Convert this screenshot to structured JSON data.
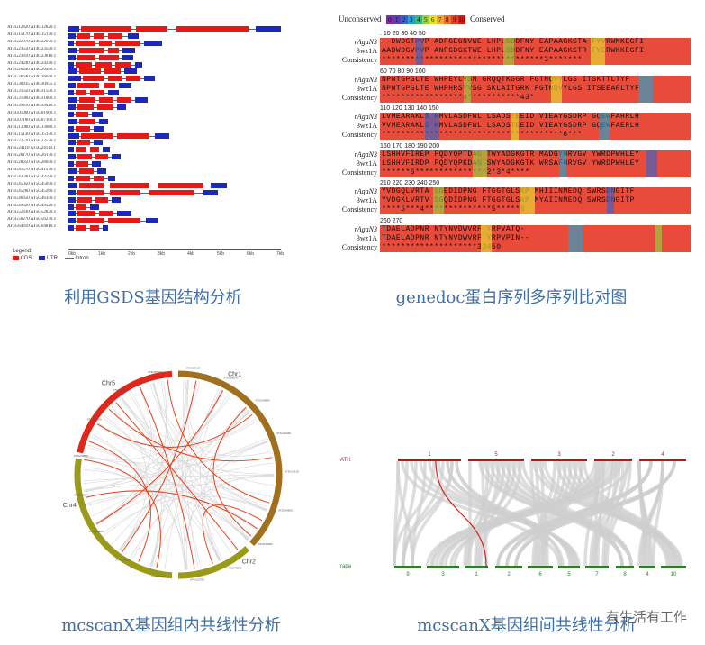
{
  "captions": {
    "gsds": "利用GSDS基因结构分析",
    "genedoc": "genedoc蛋白序列多序列比对图",
    "mcscan_intra": "mcscanX基因组内共线性分析",
    "mcscan_inter": "mcscanX基因组间共线性分析"
  },
  "watermark": "有生活有工作",
  "gsds": {
    "genes": [
      [
        "AT4G12820",
        "AT4G12820.1"
      ],
      [
        "AT4G15170",
        "AT4G15170.1"
      ],
      [
        "AT4G22070",
        "AT4G22070.1"
      ],
      [
        "AT4G23550",
        "AT4G23550.1"
      ],
      [
        "AT4G23810",
        "AT4G23810.1"
      ],
      [
        "AT4G24240",
        "AT4G24240.1"
      ],
      [
        "AT4G26440",
        "AT4G26440.1"
      ],
      [
        "AT4G26640",
        "AT4G26640.1"
      ],
      [
        "AT4G30935",
        "AT4G30935.1"
      ],
      [
        "AT4G31550",
        "AT4G31550.1"
      ],
      [
        "AT4G31800",
        "AT4G31800.1"
      ],
      [
        "AT4G39410",
        "AT4G39410.1"
      ],
      [
        "AT5G01900",
        "AT5G01900.1"
      ],
      [
        "AT5G07100",
        "AT5G07100.1"
      ],
      [
        "AT5G13080",
        "AT5G13080.1"
      ],
      [
        "AT5G15130",
        "AT5G15130.1"
      ],
      [
        "AT5G22570",
        "AT5G22570.1"
      ],
      [
        "AT5G24110",
        "AT5G24110.1"
      ],
      [
        "AT5G26170",
        "AT5G26170.1"
      ],
      [
        "AT5G28650",
        "AT5G28650.1"
      ],
      [
        "AT5G41570",
        "AT5G41570.1"
      ],
      [
        "AT5G42590",
        "AT5G42590.1"
      ],
      [
        "AT5G45050",
        "AT5G45050.1"
      ],
      [
        "AT5G45260",
        "AT5G45260.1"
      ],
      [
        "AT5G46350",
        "AT5G46350.1"
      ],
      [
        "AT5G49520",
        "AT5G49520.1"
      ],
      [
        "AT5G52830",
        "AT5G52830.1"
      ],
      [
        "AT5G56270",
        "AT5G56270.1"
      ],
      [
        "AT5G64810",
        "AT5G64810.1"
      ]
    ],
    "axis_ticks": [
      "0kb",
      "1kb",
      "2kb",
      "3kb",
      "4kb",
      "5kb",
      "6kb",
      "7kb"
    ],
    "legend_title": "Legend:",
    "legend_items": [
      "CDS",
      "UTR",
      "Intron"
    ],
    "colors": {
      "cds": "#e81818",
      "utr": "#1c29b8",
      "intron": "#666666"
    }
  },
  "genedoc": {
    "legend_left": "Unconserved",
    "legend_right": "Conserved",
    "legend_digits": [
      "0",
      "1",
      "2",
      "3",
      "4",
      "5",
      "6",
      "7",
      "8",
      "9",
      "10"
    ],
    "names": [
      "rAgaN3",
      "3wz1A",
      "Consistency"
    ],
    "blocks": [
      {
        "nums": ".          10         20         30         40         50",
        "s1": "--DWDGTPVP ADFGEGNVWE LHPLSDDFNY EAPAAGKSTA FYVRWMKEGFI",
        "s2": "AADWDGVPVP ANFGDGKTWE LHPLSDDFNY EAPAAGKSTR FYERWKKEGFI",
        "c": "**********************************3*******"
      },
      {
        "nums": "60         70         80         90        100",
        "s1": "NPWTGPGLTE WHPEYLVSN GRQQTKGGR FGTNQVYLGS ITSKTTLTYF",
        "s2": "NPWTGPGLTE WHPHRSYVSG SKLAITGRK FGTNQVYLGS ITSEEAPLTYF",
        "c": "*****************4***********43*"
      },
      {
        "nums": "110        120        130        140        150",
        "s1": "LVMEARAKLS HMVLASDFWL LSADSTEEID VIEAYGSDRP GQEWFAHRLH",
        "s2": "VVMEARAKLS HMVLASDFWL LSADSTEEID VIEAYGSDRP GQEWFAERLH",
        "c": "**************************************6***"
      },
      {
        "nums": "160        170        180        190        200",
        "s1": "LSHHVFIREP FQDYQPTDAG TWYADGKGTR MADGYHRVGV YWRDPWHLEY",
        "s2": "LSHHVFIRDP FQDYQPKDAG SWYADGKGTK WRSAFHRVGV YWRDPWHLEY",
        "c": "******6***************2*3*4****"
      },
      {
        "nums": "210        220        230        240        250",
        "s1": "YVDGQLVRTA SGEDIDPNG FTGGTGLSKP MHIIINMEDQ SWRSDNGITF",
        "s2": "YVDGKLVRTV SGQDIDPNG FTGGTGLSKP MYAIINMEDQ SWRSDNGITP",
        "c": "****5***4**************5*****5"
      },
      {
        "nums": "260        270",
        "s1": "TDAELADPNR NTYNVDWVRF YRPVATQ-",
        "s2": "TDAELADPNR NTYNVDWVRF YRPVPIN--",
        "c": "********************33450"
      }
    ]
  },
  "mcscan_intra": {
    "chromosomes": [
      "Chr1",
      "Chr2",
      "Chr4",
      "Chr5"
    ],
    "gene_labels": [
      "AT1G08190",
      "AT1G09570",
      "AT1G24880",
      "AT1G26340",
      "AT2G14120",
      "AT2G24600",
      "AT2G30080",
      "AT2G45890",
      "AT4G11700",
      "AT4G22840",
      "AT4G27000",
      "AT5G04620",
      "AT5G16070",
      "AT5G26890",
      "AT5G42290",
      "AT5G45700",
      "AT5G50560"
    ],
    "colors": {
      "chr_red": "#e0271c",
      "chr_olive": "#9a9a1a",
      "chr_brown": "#a0701e",
      "link": "#e8421e",
      "bg_links": "#d6d6d6"
    }
  },
  "mcscan_inter": {
    "top_label": "ATH",
    "bottom_label": "rapa",
    "top_chrs": [
      "1",
      "5",
      "3",
      "2",
      "4"
    ],
    "bottom_chrs": [
      "9",
      "3",
      "1",
      "2",
      "6",
      "5",
      "7",
      "8",
      "4",
      "10"
    ],
    "colors": {
      "top": "#b01a1a",
      "bottom": "#2f7a2f",
      "ribbon": "#cfcfcf",
      "highlight": "#d8201a"
    }
  }
}
